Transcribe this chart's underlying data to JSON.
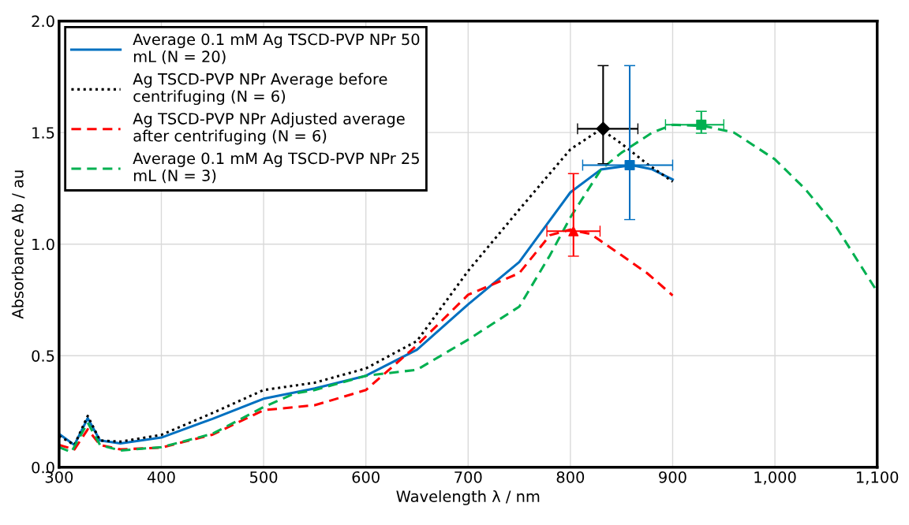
{
  "chart_data": {
    "type": "line",
    "xlabel": "Wavelength λ / nm",
    "ylabel": "Absorbance Ab / au",
    "xlim": [
      300,
      1100
    ],
    "xticks": [
      300,
      400,
      500,
      600,
      700,
      800,
      900,
      {
        "value": 1000,
        "label": "1,000"
      },
      {
        "value": 1100,
        "label": "1,100"
      }
    ],
    "ylim": [
      0,
      2
    ],
    "yticks": [
      {
        "value": 0,
        "label": "0.0"
      },
      {
        "value": 0.5,
        "label": "0.5"
      },
      {
        "value": 1,
        "label": "1.0"
      },
      {
        "value": 1.5,
        "label": "1.5"
      },
      {
        "value": 2,
        "label": "2.0"
      }
    ],
    "grid": true,
    "legend": "top left",
    "marker": "none",
    "series": [
      {
        "name": "Average 0.1 mM Ag TSCD-PVP NPr 50 mL (N = 20)",
        "color": "#0070c0",
        "line_style": "solid",
        "x": [
          300,
          315,
          328,
          340,
          360,
          400,
          450,
          500,
          550,
          600,
          650,
          700,
          750,
          800,
          830,
          860,
          880,
          900
        ],
        "values": [
          0.149,
          0.1,
          0.22,
          0.12,
          0.107,
          0.133,
          0.217,
          0.307,
          0.353,
          0.41,
          0.527,
          0.73,
          0.92,
          1.232,
          1.335,
          1.354,
          1.335,
          1.29
        ]
      },
      {
        "name": "Ag TSCD-PVP NPr Average before centrifuging (N = 6)",
        "color": "#000000",
        "line_style": "dotted",
        "x": [
          300,
          315,
          328,
          340,
          360,
          400,
          450,
          500,
          550,
          600,
          650,
          700,
          750,
          800,
          830,
          850,
          875,
          900
        ],
        "values": [
          0.14,
          0.1,
          0.23,
          0.12,
          0.115,
          0.145,
          0.243,
          0.346,
          0.379,
          0.443,
          0.566,
          0.88,
          1.155,
          1.425,
          1.515,
          1.45,
          1.36,
          1.28
        ]
      },
      {
        "name": "Ag TSCD-PVP NPr Adjusted average after centrifuging (N = 6)",
        "color": "#ff0000",
        "line_style": "dashed",
        "x": [
          300,
          315,
          328,
          340,
          360,
          400,
          450,
          500,
          550,
          600,
          650,
          700,
          750,
          780,
          800,
          820,
          850,
          875,
          900
        ],
        "values": [
          0.1,
          0.08,
          0.17,
          0.1,
          0.08,
          0.088,
          0.146,
          0.256,
          0.278,
          0.346,
          0.547,
          0.773,
          0.87,
          1.04,
          1.065,
          1.045,
          0.95,
          0.87,
          0.77
        ]
      },
      {
        "name": "Average 0.1 mM Ag TSCD-PVP NPr 25 mL (N = 3)",
        "color": "#00b050",
        "line_style": "dashed",
        "x": [
          300,
          312,
          328,
          340,
          360,
          400,
          450,
          500,
          530,
          550,
          600,
          650,
          700,
          750,
          780,
          800,
          830,
          850,
          880,
          900,
          930,
          960,
          1000,
          1030,
          1060,
          1100
        ],
        "values": [
          0.09,
          0.068,
          0.2,
          0.1,
          0.075,
          0.09,
          0.15,
          0.27,
          0.33,
          0.346,
          0.41,
          0.437,
          0.572,
          0.72,
          0.95,
          1.12,
          1.335,
          1.41,
          1.5,
          1.535,
          1.53,
          1.5,
          1.38,
          1.245,
          1.077,
          0.787
        ]
      },
      {
        "type": "scatter",
        "color": "#000000",
        "marker": "diamond",
        "x": [
          832
        ],
        "values": [
          1.517
        ],
        "errors": [
          [
            1.36,
            1.8
          ]
        ],
        "xerrors": [
          [
            807,
            866
          ]
        ]
      },
      {
        "type": "scatter",
        "color": "#0070c0",
        "marker": "square",
        "x": [
          858
        ],
        "values": [
          1.354
        ],
        "errors": [
          [
            1.11,
            1.8
          ]
        ],
        "xerrors": [
          [
            812,
            900
          ]
        ]
      },
      {
        "type": "scatter",
        "color": "#ff0000",
        "marker": "triangle",
        "x": [
          803
        ],
        "values": [
          1.058
        ],
        "errors": [
          [
            0.946,
            1.316
          ]
        ],
        "xerrors": [
          [
            777,
            829
          ]
        ]
      },
      {
        "type": "scatter",
        "color": "#00b050",
        "marker": "square",
        "x": [
          928
        ],
        "values": [
          1.535
        ],
        "errors": [
          [
            1.497,
            1.595
          ]
        ],
        "xerrors": [
          [
            893,
            950
          ]
        ]
      }
    ]
  }
}
